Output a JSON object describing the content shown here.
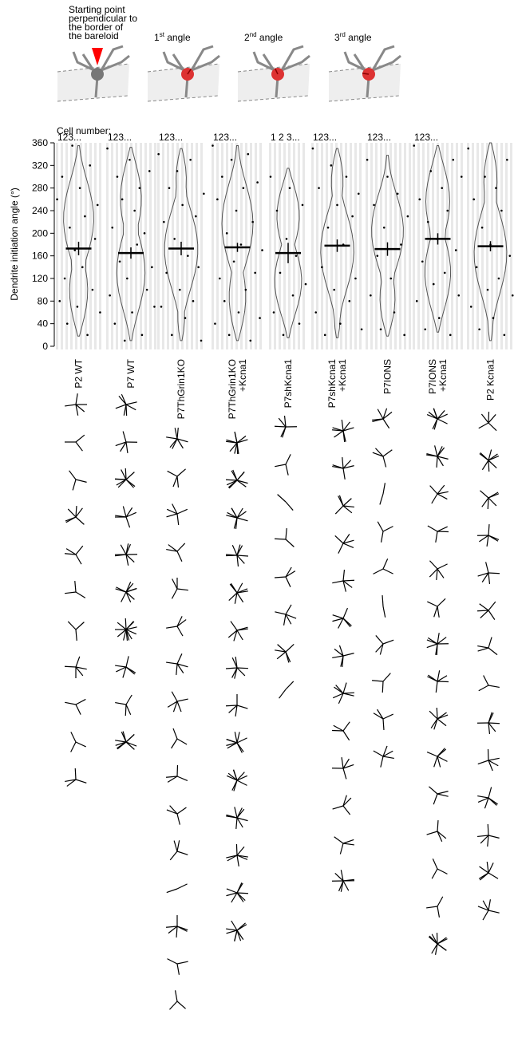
{
  "schematic": {
    "start_label": [
      "Starting point",
      "perpendicular to",
      "the border of",
      "the bareloid"
    ],
    "angles": [
      {
        "num": "1",
        "sup": "st",
        "text": " angle"
      },
      {
        "num": "2",
        "sup": "nd",
        "text": " angle"
      },
      {
        "num": "3",
        "sup": "rd",
        "text": " angle"
      }
    ]
  },
  "chart_data": {
    "type": "violin-strip",
    "y_label": "Dendrite initiation angle (°)",
    "cell_number_label": "Cell number:",
    "ylim": [
      0,
      360
    ],
    "yticks": [
      0,
      40,
      80,
      120,
      160,
      200,
      240,
      280,
      320,
      360
    ],
    "groups": [
      {
        "label": [
          "P2 WT"
        ],
        "cell_label": "123...",
        "mean": 173,
        "error": 12,
        "range": [
          18,
          355
        ],
        "points": [
          260,
          80,
          300,
          120,
          40,
          210,
          355,
          170,
          70,
          280,
          140,
          230,
          20,
          320,
          100,
          190,
          250,
          60
        ],
        "stars": [
          5,
          3,
          3,
          6,
          4,
          3,
          3,
          5,
          3,
          3,
          4
        ]
      },
      {
        "label": [
          "P7 WT"
        ],
        "cell_label": "123...",
        "mean": 165,
        "error": 10,
        "range": [
          10,
          352
        ],
        "points": [
          350,
          90,
          210,
          40,
          300,
          150,
          260,
          10,
          120,
          330,
          60,
          240,
          180,
          280,
          20,
          200,
          100,
          310,
          140,
          70
        ],
        "stars": [
          7,
          5,
          9,
          6,
          8,
          9,
          12,
          6,
          4,
          10
        ]
      },
      {
        "label": [
          "P7ThGrin1KO"
        ],
        "cell_label": "123...",
        "mean": 173,
        "error": 12,
        "range": [
          10,
          350
        ],
        "points": [
          340,
          70,
          220,
          130,
          280,
          20,
          190,
          310,
          100,
          250,
          50,
          160,
          330,
          80,
          230,
          140,
          10,
          270
        ],
        "stars": [
          7,
          4,
          5,
          4,
          4,
          4,
          5,
          5,
          3,
          4,
          4,
          4,
          2,
          6,
          3,
          3
        ]
      },
      {
        "label": [
          "P7ThGrin1KO",
          "+Kcna1"
        ],
        "cell_label": "123...",
        "mean": 175,
        "error": 8,
        "range": [
          10,
          355
        ],
        "points": [
          355,
          40,
          260,
          120,
          300,
          80,
          200,
          20,
          330,
          150,
          240,
          60,
          180,
          280,
          100,
          340,
          10,
          220,
          130,
          290,
          50,
          170
        ],
        "stars": [
          10,
          10,
          9,
          8,
          8,
          6,
          7,
          5,
          9,
          9,
          8,
          7,
          8,
          9
        ]
      },
      {
        "label": [
          "P7shKcna1"
        ],
        "cell_label": "1 2 3...",
        "mean": 165,
        "error": 18,
        "range": [
          15,
          315
        ],
        "points": [
          300,
          60,
          240,
          130,
          20,
          190,
          280,
          90,
          160,
          40,
          250,
          110
        ],
        "stars": [
          6,
          3,
          2,
          3,
          4,
          5,
          6,
          2
        ]
      },
      {
        "label": [
          "P7shKcna1",
          "+Kcna1"
        ],
        "cell_label": "123...",
        "mean": 178,
        "error": 11,
        "range": [
          15,
          350
        ],
        "points": [
          350,
          60,
          280,
          140,
          20,
          210,
          320,
          100,
          250,
          40,
          180,
          300,
          80,
          230,
          120,
          270,
          30
        ],
        "stars": [
          8,
          6,
          6,
          5,
          5,
          6,
          6,
          7,
          4,
          5,
          4,
          4,
          8
        ]
      },
      {
        "label": [
          "P7IONS"
        ],
        "cell_label": "123...",
        "mean": 172,
        "error": 12,
        "range": [
          18,
          338
        ],
        "points": [
          330,
          90,
          250,
          160,
          30,
          210,
          300,
          120,
          60,
          270,
          180,
          20,
          230
        ],
        "stars": [
          6,
          4,
          2,
          3,
          3,
          2,
          4,
          3,
          4,
          5
        ]
      },
      {
        "label": [
          "P7IONS",
          "+Kcna1"
        ],
        "cell_label": "123...",
        "mean": 190,
        "error": 10,
        "range": [
          25,
          355
        ],
        "points": [
          355,
          80,
          260,
          150,
          30,
          220,
          310,
          110,
          190,
          50,
          280,
          130,
          240,
          20,
          330,
          170,
          90,
          300
        ],
        "stars": [
          9,
          8,
          5,
          4,
          5,
          4,
          8,
          6,
          7,
          6,
          4,
          4,
          3,
          3,
          10
        ]
      },
      {
        "label": [
          "P2 Kcna1"
        ],
        "cell_label": "",
        "mean": 177,
        "error": 9,
        "range": [
          10,
          360
        ],
        "points": [
          350,
          70,
          260,
          140,
          30,
          210,
          300,
          100,
          180,
          50,
          280,
          120,
          240,
          20,
          330,
          160,
          90
        ],
        "stars": [
          5,
          8,
          6,
          6,
          5,
          5,
          4,
          3,
          6,
          5,
          6,
          5,
          6,
          5
        ]
      }
    ]
  }
}
